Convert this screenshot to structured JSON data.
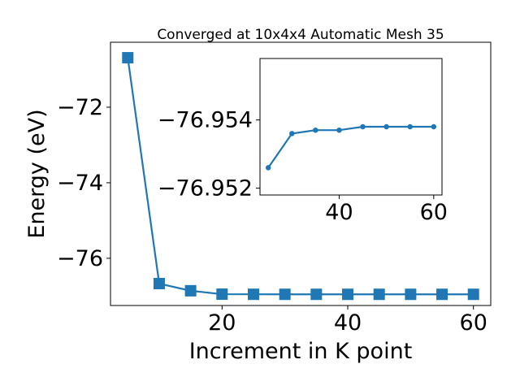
{
  "chart_data": [
    {
      "type": "line",
      "title": "Converged at 10x4x4 Automatic Mesh 35",
      "x_label": "Increment in K point",
      "y_label": "Energy (eV)",
      "x": [
        5,
        10,
        15,
        20,
        25,
        30,
        35,
        40,
        45,
        50,
        55,
        60
      ],
      "values": [
        -70.69,
        -76.67,
        -76.86,
        -76.95,
        -76.953,
        -76.9537,
        -76.9537,
        -76.9538,
        -76.9538,
        -76.9538,
        -76.9538,
        -76.9538
      ],
      "color": "#1f77b4",
      "marker": "square",
      "xlim": [
        2.25,
        62.75
      ],
      "xticks": [
        20,
        40,
        60
      ],
      "ylim": [
        -77.25,
        -70.28
      ],
      "yticks": [
        {
          "value": -72,
          "label": "−72"
        },
        {
          "value": -74,
          "label": "−74"
        },
        {
          "value": -76,
          "label": "−76"
        }
      ]
    },
    {
      "type": "line",
      "x": [
        25,
        30,
        35,
        40,
        45,
        50,
        55,
        60
      ],
      "values": [
        -76.9526,
        -76.9536,
        -76.9537,
        -76.9537,
        -76.9538,
        -76.9538,
        -76.9538,
        -76.9538
      ],
      "color": "#1f77b4",
      "marker": "circle",
      "xlim": [
        23.25,
        61.75
      ],
      "xticks": [
        40,
        60
      ],
      "ylim": [
        -76.9518,
        -76.9558
      ],
      "yticks": [
        {
          "value": -76.954,
          "label": "−76.954"
        },
        {
          "value": -76.952,
          "label": "−76.952"
        }
      ]
    }
  ]
}
